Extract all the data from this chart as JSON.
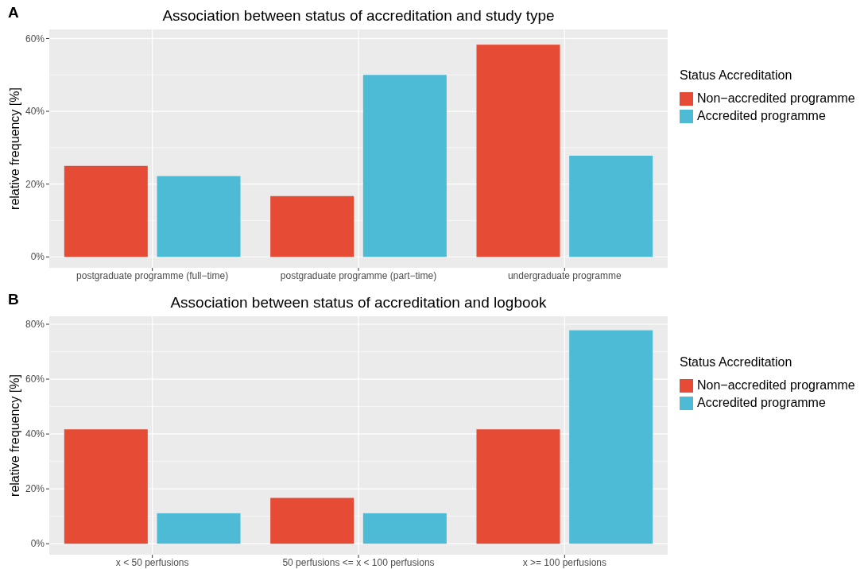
{
  "chart_data": [
    {
      "type": "bar",
      "title": "Association between status of accreditation and study type",
      "ylabel": "relative frequency [%]",
      "legend_title": "Status Accreditation",
      "annotations": [
        "A"
      ],
      "categories": [
        "postgraduate programme (full−time)",
        "postgraduate programme (part−time)",
        "undergraduate programme"
      ],
      "series": [
        {
          "name": "Non−accredited programme",
          "color": "#e64b35",
          "values": [
            25,
            16.7,
            58.3
          ]
        },
        {
          "name": "Accredited programme",
          "color": "#4dbbd5",
          "values": [
            22.2,
            50,
            27.8
          ]
        }
      ],
      "ylim": [
        -3,
        62.5
      ],
      "yticks": [
        {
          "value": 0,
          "label": "0%"
        },
        {
          "value": 20,
          "label": "20%"
        },
        {
          "value": 40,
          "label": "40%"
        },
        {
          "value": 60,
          "label": "60%"
        }
      ],
      "grid": true,
      "legend": "right"
    },
    {
      "type": "bar",
      "title": "Association between status of accreditation and logbook",
      "ylabel": "relative frequency [%]",
      "legend_title": "Status Accreditation",
      "annotations": [
        "B"
      ],
      "categories": [
        "x < 50 perfusions",
        "50 perfusions <= x < 100 perfusions",
        "x >= 100 perfusions"
      ],
      "series": [
        {
          "name": "Non−accredited programme",
          "color": "#e64b35",
          "values": [
            41.7,
            16.7,
            41.7
          ]
        },
        {
          "name": "Accredited programme",
          "color": "#4dbbd5",
          "values": [
            11.1,
            11.1,
            77.8
          ]
        }
      ],
      "ylim": [
        -4,
        82.9
      ],
      "yticks": [
        {
          "value": 0,
          "label": "0%"
        },
        {
          "value": 20,
          "label": "20%"
        },
        {
          "value": 40,
          "label": "40%"
        },
        {
          "value": 60,
          "label": "60%"
        },
        {
          "value": 80,
          "label": "80%"
        }
      ],
      "grid": true,
      "legend": "right"
    }
  ]
}
